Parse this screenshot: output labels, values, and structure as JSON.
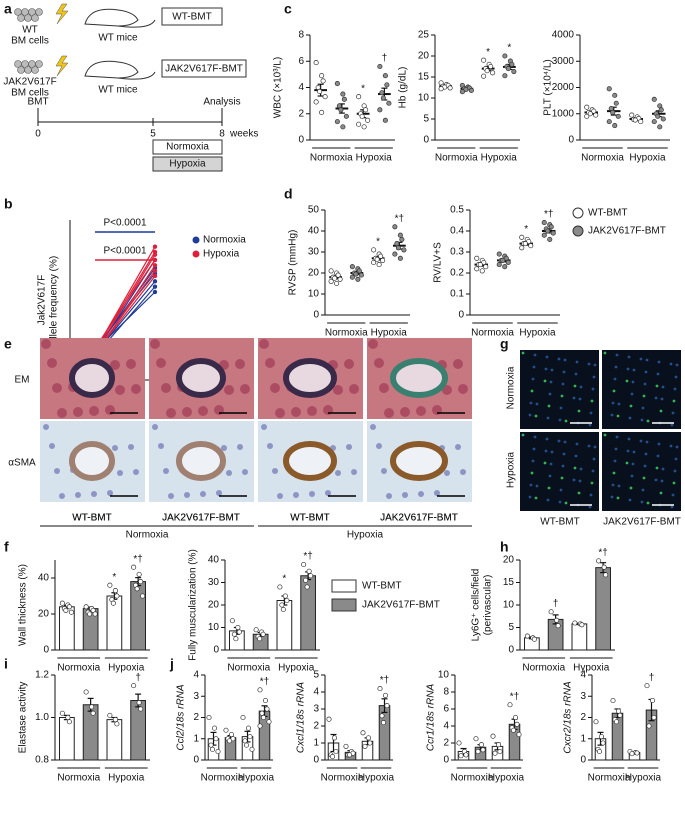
{
  "panel_labels": [
    "a",
    "b",
    "c",
    "d",
    "e",
    "f",
    "g",
    "h",
    "i",
    "j"
  ],
  "schematic": {
    "donor1": [
      "WT",
      "BM cells"
    ],
    "recipient1": "WT mice",
    "box1": "WT-BMT",
    "donor2": [
      "JAK2V617F",
      "BM cells"
    ],
    "recipient2": "WT mice",
    "box2": "JAK2V617F-BMT",
    "bmt": "BMT",
    "analysis": "Analysis",
    "ticks": [
      0,
      5,
      8
    ],
    "unit": "weeks",
    "normoxia": "Normoxia",
    "hypoxia": "Hypoxia"
  },
  "legend": {
    "items": [
      {
        "name": "WT-BMT",
        "color": "#ffffff"
      },
      {
        "name": "JAK2V617F-BMT",
        "color": "#8a8a8a"
      }
    ]
  },
  "panel_e": {
    "rows": [
      "EM",
      "αSMA"
    ],
    "columns": [
      "WT-BMT",
      "JAK2V617F-BMT",
      "WT-BMT",
      "JAK2V617F-BMT"
    ],
    "groups": [
      "Normoxia",
      "Hypoxia"
    ]
  },
  "panel_g": {
    "rows": [
      "Normoxia",
      "Hypoxia"
    ],
    "columns": [
      "WT-BMT",
      "JAK2V617F-BMT"
    ]
  },
  "chart_data": [
    {
      "type": "paired",
      "ylabel": [
        "Jak2V617F",
        "allele frequency (%)"
      ],
      "categories": [
        "4",
        "8"
      ],
      "xlabel": "weeks",
      "ylim": [
        15,
        75
      ],
      "groups": [
        {
          "name": "Normoxia",
          "color": "#1f3c99",
          "lines": [
            [
              25,
              52
            ],
            [
              26,
              57
            ],
            [
              24,
              50
            ],
            [
              27,
              55
            ],
            [
              25,
              60
            ],
            [
              26,
              48
            ]
          ]
        },
        {
          "name": "Hypoxia",
          "color": "#e0203a",
          "lines": [
            [
              25,
              62
            ],
            [
              26,
              65
            ],
            [
              24,
              58
            ],
            [
              27,
              60
            ],
            [
              25,
              56
            ],
            [
              26,
              63
            ],
            [
              25,
              54
            ]
          ]
        }
      ],
      "pvalues": [
        {
          "text": "P<0.0001",
          "color": "#1f3c99"
        },
        {
          "text": "P<0.0001",
          "color": "#e0203a"
        }
      ]
    },
    {
      "type": "dot",
      "ylabel": "WBC (×10³/L)",
      "ylim": [
        0,
        8
      ],
      "yticks": [
        0,
        2,
        4,
        6,
        8
      ],
      "groups": [
        "Normoxia",
        "Hypoxia"
      ],
      "series": [
        {
          "values": [
            3.8,
            2.0
          ],
          "errors": [
            0.45,
            0.3
          ],
          "points": [
            [
              5.9,
              4.9,
              4.5,
              4.0,
              3.7,
              3.3,
              2.9,
              2.1
            ],
            [
              3.3,
              2.6,
              2.3,
              2.0,
              1.8,
              1.5,
              1.2,
              1.0
            ]
          ],
          "annotations": [
            null,
            "*"
          ]
        },
        {
          "values": [
            2.4,
            3.5
          ],
          "errors": [
            0.35,
            0.45
          ],
          "points": [
            [
              4.3,
              3.5,
              3.1,
              2.6,
              2.3,
              1.8,
              1.4,
              1.0
            ],
            [
              5.6,
              4.9,
              4.2,
              3.6,
              3.2,
              2.8,
              2.3,
              1.5
            ]
          ],
          "annotations": [
            null,
            "†"
          ]
        }
      ]
    },
    {
      "type": "dot",
      "ylabel": "Hb (g/dL)",
      "ylim": [
        0,
        25
      ],
      "yticks": [
        0,
        5,
        10,
        15,
        20,
        25
      ],
      "groups": [
        "Normoxia",
        "Hypoxia"
      ],
      "series": [
        {
          "values": [
            12.8,
            17.0
          ],
          "errors": [
            0.2,
            0.5
          ],
          "points": [
            [
              13.6,
              13.2,
              13.0,
              12.8,
              12.6,
              12.4,
              12.2
            ],
            [
              19.0,
              18.0,
              17.5,
              17.0,
              16.5,
              16.0,
              15.2
            ]
          ],
          "annotations": [
            null,
            "*"
          ]
        },
        {
          "values": [
            12.2,
            17.4
          ],
          "errors": [
            0.2,
            0.6
          ],
          "points": [
            [
              13.0,
              12.6,
              12.4,
              12.2,
              12.0,
              11.8,
              11.5
            ],
            [
              20.0,
              18.8,
              18.0,
              17.5,
              17.0,
              16.3,
              15.3
            ]
          ],
          "annotations": [
            null,
            "*"
          ]
        }
      ]
    },
    {
      "type": "dot",
      "ylabel": "PLT (×10⁴/L)",
      "ylim": [
        0,
        4000
      ],
      "yticks": [
        0,
        1000,
        2000,
        3000,
        4000
      ],
      "groups": [
        "Normoxia",
        "Hypoxia"
      ],
      "series": [
        {
          "values": [
            1050,
            800
          ],
          "errors": [
            60,
            40
          ],
          "points": [
            [
              1250,
              1150,
              1100,
              1050,
              1000,
              950,
              900
            ],
            [
              950,
              880,
              820,
              780,
              760,
              700
            ]
          ]
        },
        {
          "values": [
            1100,
            1000
          ],
          "errors": [
            150,
            110
          ],
          "points": [
            [
              1950,
              1700,
              1400,
              1200,
              1050,
              900,
              700,
              550
            ],
            [
              1550,
              1300,
              1150,
              1000,
              900,
              800,
              700,
              500
            ]
          ]
        }
      ]
    },
    {
      "type": "dot",
      "ylabel": "RVSP (mmHg)",
      "ylim": [
        0,
        50
      ],
      "yticks": [
        0,
        10,
        20,
        30,
        40,
        50
      ],
      "groups": [
        "Normoxia",
        "Hypoxia"
      ],
      "series": [
        {
          "values": [
            18,
            27
          ],
          "errors": [
            0.7,
            0.8
          ],
          "points": [
            [
              21,
              20,
              19,
              18,
              17.5,
              17,
              16,
              15
            ],
            [
              31,
              29,
              28,
              27,
              26.5,
              26,
              25,
              24
            ]
          ],
          "annotations": [
            null,
            "*"
          ]
        },
        {
          "values": [
            20,
            33
          ],
          "errors": [
            0.7,
            1.6
          ],
          "points": [
            [
              23,
              22,
              21,
              20,
              19.5,
              19,
              18,
              17
            ],
            [
              42,
              38,
              36,
              34,
              32,
              31,
              29,
              27
            ]
          ],
          "annotations": [
            null,
            "*†"
          ]
        }
      ]
    },
    {
      "type": "dot",
      "ylabel": "RV/LV+S",
      "ylim": [
        0,
        0.5
      ],
      "yticks": [
        0,
        0.1,
        0.2,
        0.3,
        0.4,
        0.5
      ],
      "groups": [
        "Normoxia",
        "Hypoxia"
      ],
      "series": [
        {
          "values": [
            0.24,
            0.34
          ],
          "errors": [
            0.007,
            0.007
          ],
          "points": [
            [
              0.27,
              0.26,
              0.25,
              0.24,
              0.24,
              0.23,
              0.22,
              0.21
            ],
            [
              0.37,
              0.36,
              0.35,
              0.34,
              0.34,
              0.33,
              0.32
            ]
          ],
          "annotations": [
            null,
            "*"
          ]
        },
        {
          "values": [
            0.26,
            0.4
          ],
          "errors": [
            0.007,
            0.009
          ],
          "points": [
            [
              0.29,
              0.28,
              0.27,
              0.26,
              0.26,
              0.25,
              0.24,
              0.23
            ],
            [
              0.44,
              0.43,
              0.42,
              0.41,
              0.4,
              0.39,
              0.38,
              0.36
            ]
          ],
          "annotations": [
            null,
            "*†"
          ]
        }
      ]
    },
    {
      "type": "bar",
      "ylabel": "Wall thickness (%)",
      "ylim": [
        0,
        50
      ],
      "yticks": [
        0,
        20,
        40
      ],
      "groups": [
        "Normoxia",
        "Hypoxia"
      ],
      "series": [
        {
          "values": [
            24,
            30
          ],
          "errors": [
            0.8,
            1.8
          ],
          "points": [
            [
              26,
              25,
              24,
              23,
              22,
              21
            ],
            [
              36,
              33,
              30,
              28,
              26
            ]
          ],
          "annotations": [
            null,
            "*"
          ]
        },
        {
          "values": [
            23,
            38
          ],
          "errors": [
            0.8,
            2.2
          ],
          "points": [
            [
              24,
              23,
              22,
              21,
              20,
              20
            ],
            [
              46,
              42,
              38,
              36,
              34,
              30
            ]
          ],
          "annotations": [
            null,
            "*†"
          ]
        }
      ]
    },
    {
      "type": "bar",
      "ylabel": "Fully muscularization (%)",
      "ylim": [
        0,
        40
      ],
      "yticks": [
        0,
        10,
        20,
        30,
        40
      ],
      "groups": [
        "Normoxia",
        "Hypoxia"
      ],
      "series": [
        {
          "values": [
            8.5,
            22
          ],
          "errors": [
            1.5,
            2
          ],
          "points": [
            [
              13,
              10,
              8,
              7,
              5
            ],
            [
              28,
              24,
              22,
              20,
              18
            ]
          ],
          "annotations": [
            null,
            "*"
          ]
        },
        {
          "values": [
            7,
            33
          ],
          "errors": [
            0.8,
            1.7
          ],
          "points": [
            [
              9,
              8,
              7,
              6,
              5
            ],
            [
              38,
              35,
              33,
              31,
              28
            ]
          ],
          "annotations": [
            null,
            "*†"
          ]
        }
      ]
    },
    {
      "type": "bar",
      "ylabel": [
        "Ly6G⁺ cells/field",
        "(perivascular)"
      ],
      "ylim": [
        0,
        20
      ],
      "yticks": [
        0,
        5,
        10,
        15,
        20
      ],
      "groups": [
        "Normoxia",
        "Hypoxia"
      ],
      "series": [
        {
          "values": [
            2.7,
            5.8
          ],
          "errors": [
            0.2,
            0.15
          ],
          "points": [
            [
              3.1,
              2.7,
              2.4
            ],
            [
              6.0,
              5.8,
              5.6
            ]
          ]
        },
        {
          "values": [
            6.8,
            18.3
          ],
          "errors": [
            1,
            1.1
          ],
          "points": [
            [
              8.5,
              6.6,
              5.4
            ],
            [
              19.8,
              18.4,
              16.7
            ]
          ],
          "annotations": [
            "†",
            "*†"
          ]
        }
      ]
    },
    {
      "type": "bar",
      "ylabel": "Elastase activity",
      "ylim": [
        0.8,
        1.2
      ],
      "yticks": [
        0.8,
        {
          "value": 1,
          "label": "1.0"
        },
        1.2
      ],
      "groups": [
        "Normoxia",
        "Hypoxia"
      ],
      "series": [
        {
          "values": [
            1.0,
            0.99
          ],
          "errors": [
            0.01,
            0.01
          ],
          "points": [
            [
              1.02,
              1.0,
              0.98
            ],
            [
              1.01,
              0.99,
              0.97
            ]
          ]
        },
        {
          "values": [
            1.06,
            1.08
          ],
          "errors": [
            0.03,
            0.03
          ],
          "points": [
            [
              1.12,
              1.05,
              1.02
            ],
            [
              1.15,
              1.07,
              1.04
            ]
          ],
          "annotations": [
            null,
            "†"
          ]
        }
      ]
    },
    {
      "type": "bar",
      "ylabel": "Ccl2/18s rRNA",
      "ylim": [
        0,
        4
      ],
      "yticks": [
        0,
        1,
        2,
        3,
        4
      ],
      "groups": [
        "Normoxia",
        "Hypoxia"
      ],
      "series": [
        {
          "values": [
            1.0,
            1.1
          ],
          "errors": [
            0.3,
            0.25
          ],
          "points": [
            [
              2.0,
              1.5,
              1.0,
              0.7,
              0.5,
              0.4
            ],
            [
              2.0,
              1.5,
              1.1,
              0.9,
              0.7,
              0.5
            ]
          ]
        },
        {
          "values": [
            1.05,
            2.3
          ],
          "errors": [
            0.1,
            0.25
          ],
          "points": [
            [
              1.4,
              1.2,
              1.0,
              1.0,
              0.9
            ],
            [
              3.3,
              2.8,
              2.4,
              2.2,
              2.0,
              1.8,
              1.6
            ]
          ],
          "annotations": [
            null,
            "*†"
          ]
        }
      ]
    },
    {
      "type": "bar",
      "ylabel": "Cxcl1/18s rRNA",
      "ylim": [
        0,
        5
      ],
      "yticks": [
        0,
        1,
        2,
        3,
        4,
        5
      ],
      "groups": [
        "Normoxia",
        "Hypoxia"
      ],
      "series": [
        {
          "values": [
            1.0,
            1.1
          ],
          "errors": [
            0.5,
            0.2
          ],
          "points": [
            [
              2.4,
              1.3,
              0.5,
              0.3,
              0.2
            ],
            [
              1.6,
              1.3,
              1.0,
              0.8
            ]
          ]
        },
        {
          "values": [
            0.45,
            3.2
          ],
          "errors": [
            0.1,
            0.4
          ],
          "points": [
            [
              0.8,
              0.5,
              0.4,
              0.3,
              0.3
            ],
            [
              4.2,
              3.8,
              3.2,
              2.6,
              2.2
            ]
          ],
          "annotations": [
            null,
            "*†"
          ]
        }
      ]
    },
    {
      "type": "bar",
      "ylabel": "Ccr1/18s rRNA",
      "ylim": [
        0,
        10
      ],
      "yticks": [
        0,
        2,
        4,
        6,
        8,
        10
      ],
      "groups": [
        "Normoxia",
        "Hypoxia"
      ],
      "series": [
        {
          "values": [
            1.0,
            1.6
          ],
          "errors": [
            0.35,
            0.4
          ],
          "points": [
            [
              2.0,
              1.0,
              0.6,
              0.5
            ],
            [
              2.8,
              1.8,
              1.0,
              0.8
            ]
          ]
        },
        {
          "values": [
            1.5,
            4.2
          ],
          "errors": [
            0.3,
            0.6
          ],
          "points": [
            [
              2.5,
              1.8,
              1.2,
              1.0
            ],
            [
              6.5,
              5.0,
              4.2,
              3.8,
              3.5,
              3.0
            ]
          ],
          "annotations": [
            null,
            "*†"
          ]
        }
      ]
    },
    {
      "type": "bar",
      "ylabel": "Cxcr2/18s rRNA",
      "ylim": [
        0,
        4
      ],
      "yticks": [
        0,
        1,
        2,
        3,
        4
      ],
      "groups": [
        "Normoxia",
        "Hypoxia"
      ],
      "series": [
        {
          "values": [
            1.0,
            0.35
          ],
          "errors": [
            0.3,
            0.02
          ],
          "points": [
            [
              1.8,
              1.1,
              0.8,
              0.5,
              0.4
            ],
            [
              0.4,
              0.35,
              0.33,
              0.3
            ]
          ]
        },
        {
          "values": [
            2.2,
            2.35
          ],
          "errors": [
            0.2,
            0.5
          ],
          "points": [
            [
              2.8,
              2.3,
              2.1,
              1.9,
              1.8
            ],
            [
              3.5,
              2.8,
              2.0,
              1.6
            ]
          ],
          "annotations": [
            null,
            "†"
          ]
        }
      ]
    }
  ]
}
